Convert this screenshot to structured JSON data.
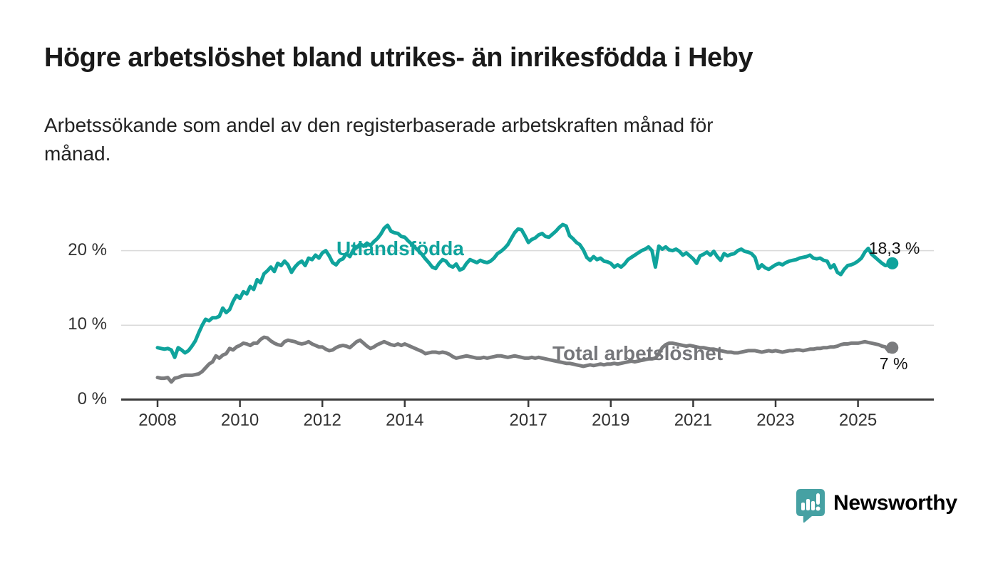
{
  "header": {
    "title": "Högre arbetslöshet bland utrikes- än inrikesfödda i Heby",
    "subtitle": "Arbetssökande som andel av den registerbaserade arbetskraften månad för månad."
  },
  "colors": {
    "series_teal": "#0fa39c",
    "series_gray": "#7b7c7e",
    "label_gray": "#75767a",
    "grid": "#dadada",
    "axis": "#3a3a3a",
    "text_dark": "#1a1a1a",
    "logo_teal": "#46a1a3"
  },
  "chart_data": {
    "type": "line",
    "unit": "%",
    "x_start_year": 2008,
    "x_step_months": 1,
    "xlim": [
      2007.1,
      2026.8
    ],
    "ylim": [
      0,
      25
    ],
    "grid": "horizontal",
    "legend_position": "inline-labels",
    "yticks": [
      {
        "value": 0,
        "label": "0 %"
      },
      {
        "value": 10,
        "label": "10 %"
      },
      {
        "value": 20,
        "label": "20 %"
      }
    ],
    "xticks": [
      {
        "year": 2008,
        "label": "2008"
      },
      {
        "year": 2010,
        "label": "2010"
      },
      {
        "year": 2012,
        "label": "2012"
      },
      {
        "year": 2014,
        "label": "2014"
      },
      {
        "year": 2017,
        "label": "2017"
      },
      {
        "year": 2019,
        "label": "2019"
      },
      {
        "year": 2021,
        "label": "2021"
      },
      {
        "year": 2023,
        "label": "2023"
      },
      {
        "year": 2025,
        "label": "2025"
      }
    ],
    "series": [
      {
        "name": "Utlandsfödda",
        "color": "#0fa39c",
        "label_color": "#0fa39c",
        "end_label": "18,3 %",
        "end_value": 18.3,
        "values": [
          7.0,
          6.9,
          6.8,
          6.9,
          6.7,
          5.7,
          7.0,
          6.7,
          6.3,
          6.6,
          7.2,
          7.9,
          9.0,
          10.0,
          10.8,
          10.6,
          11.0,
          11.0,
          11.2,
          12.3,
          11.7,
          12.1,
          13.2,
          14.0,
          13.6,
          14.5,
          14.2,
          15.2,
          14.8,
          16.1,
          15.7,
          16.9,
          17.3,
          17.8,
          17.2,
          18.3,
          18.0,
          18.6,
          18.1,
          17.1,
          17.8,
          18.3,
          18.6,
          18.0,
          19.0,
          18.8,
          19.4,
          19.0,
          19.7,
          20.0,
          19.3,
          18.4,
          18.1,
          18.7,
          18.9,
          19.6,
          19.2,
          20.1,
          20.4,
          20.9,
          20.6,
          21.0,
          20.7,
          21.2,
          21.6,
          22.2,
          23.0,
          23.4,
          22.6,
          22.4,
          22.3,
          21.9,
          21.8,
          21.3,
          20.9,
          20.4,
          20.0,
          19.5,
          18.9,
          18.4,
          17.8,
          17.6,
          18.3,
          18.8,
          18.6,
          18.0,
          17.8,
          18.2,
          17.4,
          17.6,
          18.3,
          18.8,
          18.6,
          18.4,
          18.7,
          18.5,
          18.4,
          18.6,
          19.0,
          19.6,
          19.9,
          20.3,
          20.8,
          21.6,
          22.4,
          22.9,
          22.8,
          22.0,
          21.1,
          21.5,
          21.7,
          22.1,
          22.3,
          21.9,
          21.8,
          22.2,
          22.6,
          23.1,
          23.5,
          23.3,
          22.0,
          21.6,
          21.1,
          20.8,
          20.1,
          19.1,
          18.7,
          19.2,
          18.8,
          19.0,
          18.6,
          18.5,
          18.3,
          17.8,
          18.1,
          17.8,
          18.2,
          18.8,
          19.1,
          19.4,
          19.7,
          20.0,
          20.2,
          20.5,
          20.0,
          17.8,
          20.6,
          20.2,
          20.5,
          20.1,
          20.0,
          20.2,
          19.9,
          19.4,
          19.7,
          19.3,
          18.9,
          18.3,
          19.3,
          19.5,
          19.8,
          19.4,
          19.9,
          19.2,
          18.7,
          19.6,
          19.3,
          19.5,
          19.6,
          20.0,
          20.2,
          19.9,
          19.8,
          19.6,
          19.1,
          17.6,
          18.1,
          17.7,
          17.5,
          17.8,
          18.1,
          18.3,
          18.1,
          18.4,
          18.6,
          18.7,
          18.8,
          19.0,
          19.1,
          19.2,
          19.4,
          19.0,
          18.9,
          19.0,
          18.7,
          18.6,
          17.7,
          18.1,
          17.1,
          16.8,
          17.5,
          18.0,
          18.1,
          18.3,
          18.6,
          19.0,
          19.8,
          20.3,
          19.5,
          19.1,
          18.7,
          18.3,
          18.0,
          18.1,
          18.3
        ]
      },
      {
        "name": "Total arbetslöshet",
        "color": "#7b7c7e",
        "label_color": "#75767a",
        "end_label": "7 %",
        "end_value": 7.0,
        "values": [
          3.0,
          2.9,
          2.9,
          3.0,
          2.4,
          2.9,
          3.0,
          3.2,
          3.3,
          3.3,
          3.3,
          3.4,
          3.5,
          3.8,
          4.3,
          4.8,
          5.1,
          5.9,
          5.6,
          6.0,
          6.2,
          6.9,
          6.7,
          7.1,
          7.3,
          7.6,
          7.5,
          7.3,
          7.6,
          7.6,
          8.1,
          8.4,
          8.3,
          7.9,
          7.6,
          7.4,
          7.3,
          7.8,
          8.0,
          7.9,
          7.8,
          7.6,
          7.5,
          7.6,
          7.8,
          7.5,
          7.3,
          7.1,
          7.1,
          6.8,
          6.6,
          6.7,
          7.0,
          7.2,
          7.3,
          7.2,
          7.0,
          7.4,
          7.8,
          8.0,
          7.6,
          7.2,
          6.9,
          7.1,
          7.4,
          7.6,
          7.8,
          7.6,
          7.4,
          7.3,
          7.5,
          7.3,
          7.5,
          7.3,
          7.1,
          6.9,
          6.7,
          6.5,
          6.2,
          6.3,
          6.4,
          6.4,
          6.3,
          6.4,
          6.3,
          6.1,
          5.8,
          5.6,
          5.7,
          5.8,
          5.9,
          5.8,
          5.7,
          5.6,
          5.6,
          5.7,
          5.6,
          5.7,
          5.8,
          5.9,
          5.9,
          5.8,
          5.7,
          5.8,
          5.9,
          5.8,
          5.7,
          5.6,
          5.6,
          5.7,
          5.6,
          5.7,
          5.6,
          5.5,
          5.4,
          5.3,
          5.2,
          5.1,
          5.0,
          4.9,
          4.9,
          4.8,
          4.7,
          4.6,
          4.5,
          4.6,
          4.7,
          4.6,
          4.7,
          4.8,
          4.7,
          4.8,
          4.8,
          4.9,
          4.8,
          4.9,
          5.0,
          5.1,
          5.2,
          5.1,
          5.2,
          5.3,
          5.4,
          5.5,
          5.5,
          5.6,
          6.2,
          7.0,
          7.4,
          7.6,
          7.6,
          7.5,
          7.4,
          7.3,
          7.2,
          7.3,
          7.2,
          7.1,
          7.0,
          7.0,
          6.9,
          6.8,
          6.8,
          6.7,
          6.6,
          6.5,
          6.4,
          6.4,
          6.3,
          6.3,
          6.4,
          6.5,
          6.6,
          6.6,
          6.6,
          6.5,
          6.4,
          6.5,
          6.6,
          6.5,
          6.6,
          6.5,
          6.4,
          6.5,
          6.6,
          6.6,
          6.7,
          6.7,
          6.6,
          6.7,
          6.8,
          6.8,
          6.9,
          6.9,
          7.0,
          7.0,
          7.1,
          7.1,
          7.2,
          7.4,
          7.5,
          7.5,
          7.6,
          7.6,
          7.6,
          7.7,
          7.8,
          7.7,
          7.6,
          7.5,
          7.4,
          7.2,
          7.1,
          6.5,
          7.0
        ]
      }
    ],
    "title": "Högre arbetslöshet bland utrikes- än inrikesfödda i Heby",
    "xlabel": "",
    "ylabel": ""
  },
  "logo": {
    "text": "Newsworthy",
    "icon": "speech-bubble-bar-chart-exclamation"
  }
}
